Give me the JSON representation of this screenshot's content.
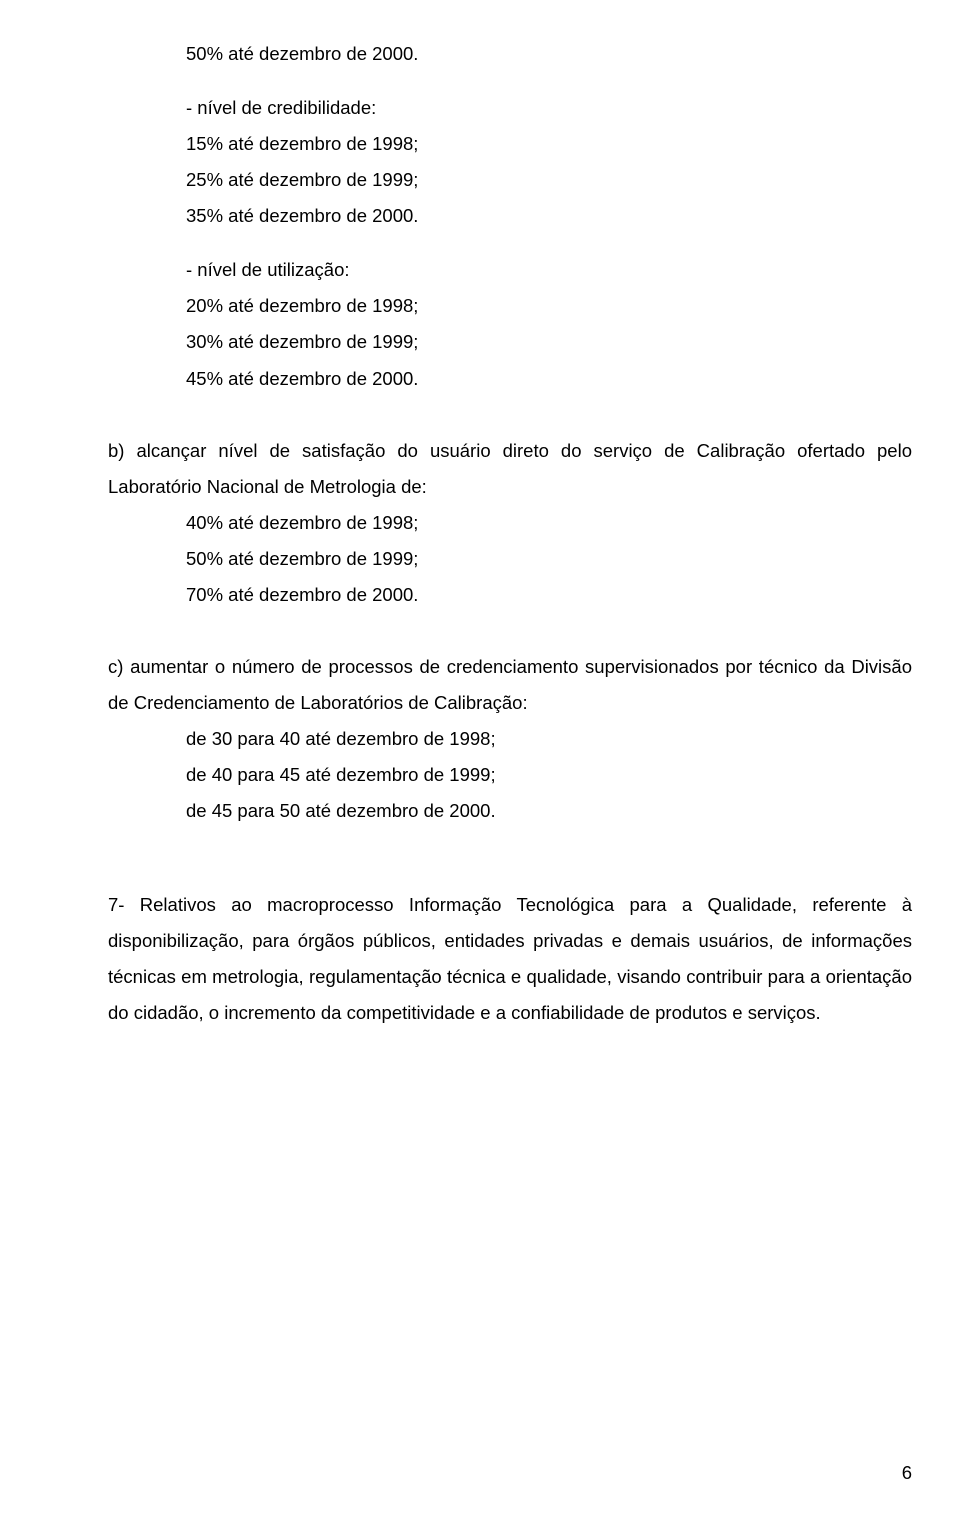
{
  "top_line": "50% até dezembro de 2000.",
  "sec_a2": {
    "heading": "- nível de credibilidade:",
    "lines": [
      "15% até dezembro de 1998;",
      "25% até dezembro de 1999;",
      "35% até dezembro de 2000."
    ]
  },
  "sec_a3": {
    "heading": "- nível de utilização:",
    "lines": [
      "20% até dezembro de 1998;",
      "30% até dezembro de 1999;",
      "45% até dezembro de 2000."
    ]
  },
  "sec_b": {
    "intro": "b) alcançar nível de satisfação do usuário direto do serviço de Calibração ofertado pelo Laboratório Nacional de Metrologia de:",
    "lines": [
      "40% até dezembro de 1998;",
      "50% até dezembro de 1999;",
      "70% até dezembro de 2000."
    ]
  },
  "sec_c": {
    "intro": "c) aumentar o número de processos de credenciamento supervisionados por técnico da Divisão de Credenciamento de Laboratórios de Calibração:",
    "lines": [
      "de 30 para 40 até dezembro de 1998;",
      "de 40 para 45 até dezembro de 1999;",
      "de 45 para 50 até dezembro de 2000."
    ]
  },
  "sec_7": "7- Relativos ao macroprocesso Informação Tecnológica para a Qualidade, referente à disponibilização, para órgãos públicos, entidades privadas e demais usuários, de informações técnicas em metrologia, regulamentação técnica e qualidade, visando contribuir para a orientação do cidadão, o incremento da competitividade e a confiabilidade de produtos e serviços.",
  "page_number": "6"
}
